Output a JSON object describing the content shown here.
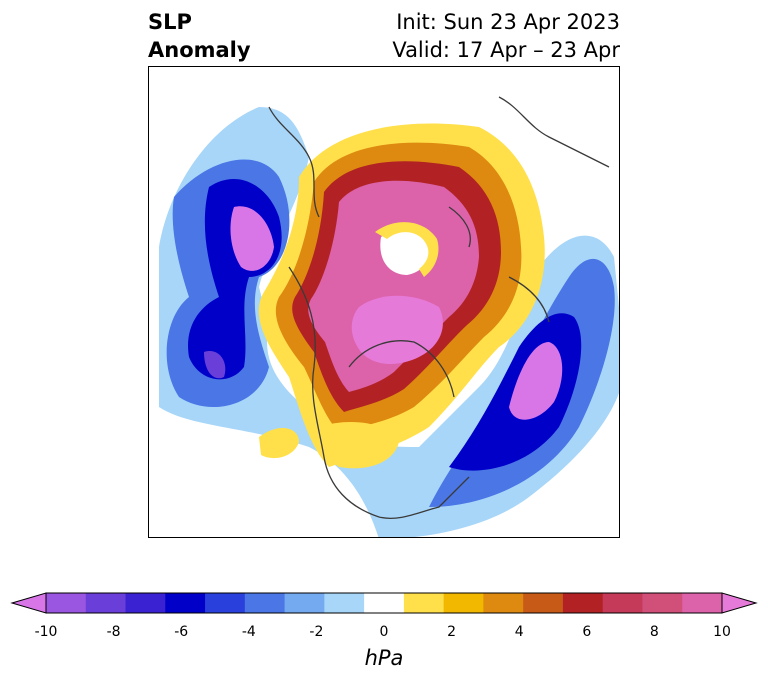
{
  "header": {
    "title_line1": "SLP",
    "title_line2": "Anomaly",
    "init": "Init: Sun 23 Apr 2023",
    "valid": "Valid: 17 Apr – 23 Apr"
  },
  "colorbar": {
    "unit": "hPa",
    "ticks": [
      "-10",
      "-8",
      "-6",
      "-4",
      "-2",
      "0",
      "2",
      "4",
      "6",
      "8",
      "10"
    ],
    "colors": [
      "#d876e8",
      "#9a56e0",
      "#6a3ed8",
      "#3a22d2",
      "#0000c8",
      "#2a40dc",
      "#4a76e6",
      "#74aaf0",
      "#a8d6f8",
      "#ffffff",
      "#ffe04a",
      "#f2b800",
      "#de8a10",
      "#c85a18",
      "#b22224",
      "#c43a58",
      "#d0507a",
      "#dc62aa",
      "#e67ad8"
    ]
  }
}
